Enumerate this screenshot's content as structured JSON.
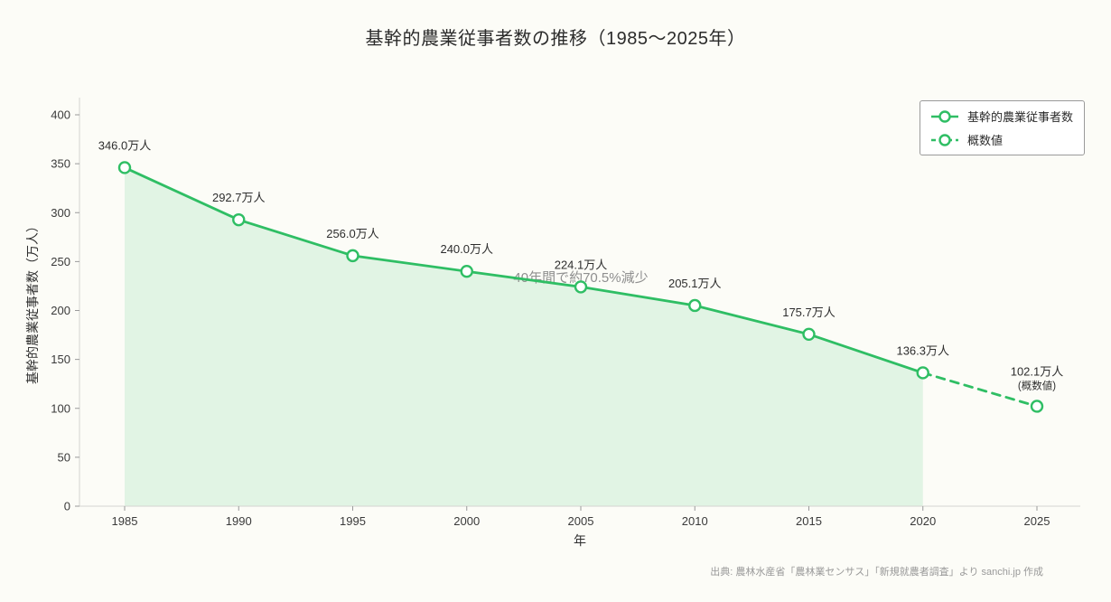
{
  "page": {
    "title": "基幹的農業従事者数の推移（1985〜2025年）",
    "source": "出典: 農林水産省「農林業センサス」「新規就農者調査」より sanchi.jp 作成"
  },
  "chart_data": {
    "type": "line",
    "title": "基幹的農業従事者数の推移（1985〜2025年）",
    "xlabel": "年",
    "ylabel": "基幹的農業従事者数（万人）",
    "ylim": [
      0,
      415
    ],
    "yticks": [
      0,
      50,
      100,
      150,
      200,
      250,
      300,
      350,
      400
    ],
    "grid": false,
    "legend_position": "upper right",
    "legend": [
      {
        "label": "基幹的農業従事者数",
        "style": "solid"
      },
      {
        "label": "概数値",
        "style": "dashed"
      }
    ],
    "series": [
      {
        "name": "基幹的農業従事者数",
        "style": "solid",
        "x": [
          1985,
          1990,
          1995,
          2000,
          2005,
          2010,
          2015,
          2020
        ],
        "values": [
          346.0,
          292.7,
          256.0,
          240.0,
          224.1,
          205.1,
          175.7,
          136.3
        ]
      },
      {
        "name": "概数値",
        "style": "dashed",
        "x": [
          2020,
          2025
        ],
        "values": [
          136.3,
          102.1
        ]
      }
    ],
    "points": [
      {
        "x": 1985,
        "y": 346.0,
        "label": "346.0万人"
      },
      {
        "x": 1990,
        "y": 292.7,
        "label": "292.7万人"
      },
      {
        "x": 1995,
        "y": 256.0,
        "label": "256.0万人"
      },
      {
        "x": 2000,
        "y": 240.0,
        "label": "240.0万人"
      },
      {
        "x": 2005,
        "y": 224.1,
        "label": "224.1万人"
      },
      {
        "x": 2010,
        "y": 205.1,
        "label": "205.1万人"
      },
      {
        "x": 2015,
        "y": 175.7,
        "label": "175.7万人"
      },
      {
        "x": 2020,
        "y": 136.3,
        "label": "136.3万人"
      },
      {
        "x": 2025,
        "y": 102.1,
        "label": "102.1万人",
        "sublabel": "(概数値)"
      }
    ],
    "annotation": {
      "text": "40年間で約70.5%減少",
      "at_x": 2005,
      "at_y": 229
    },
    "colors": {
      "line": "#2fbe64",
      "marker_fill": "#ffffff",
      "area_fill": "#2fbe64",
      "area_opacity": 0.13,
      "annotation": "#8f8f8f",
      "text": "#2e2e2e",
      "tick": "#3a3a3a",
      "spine": "#d5d5d0",
      "source": "#999999"
    }
  }
}
